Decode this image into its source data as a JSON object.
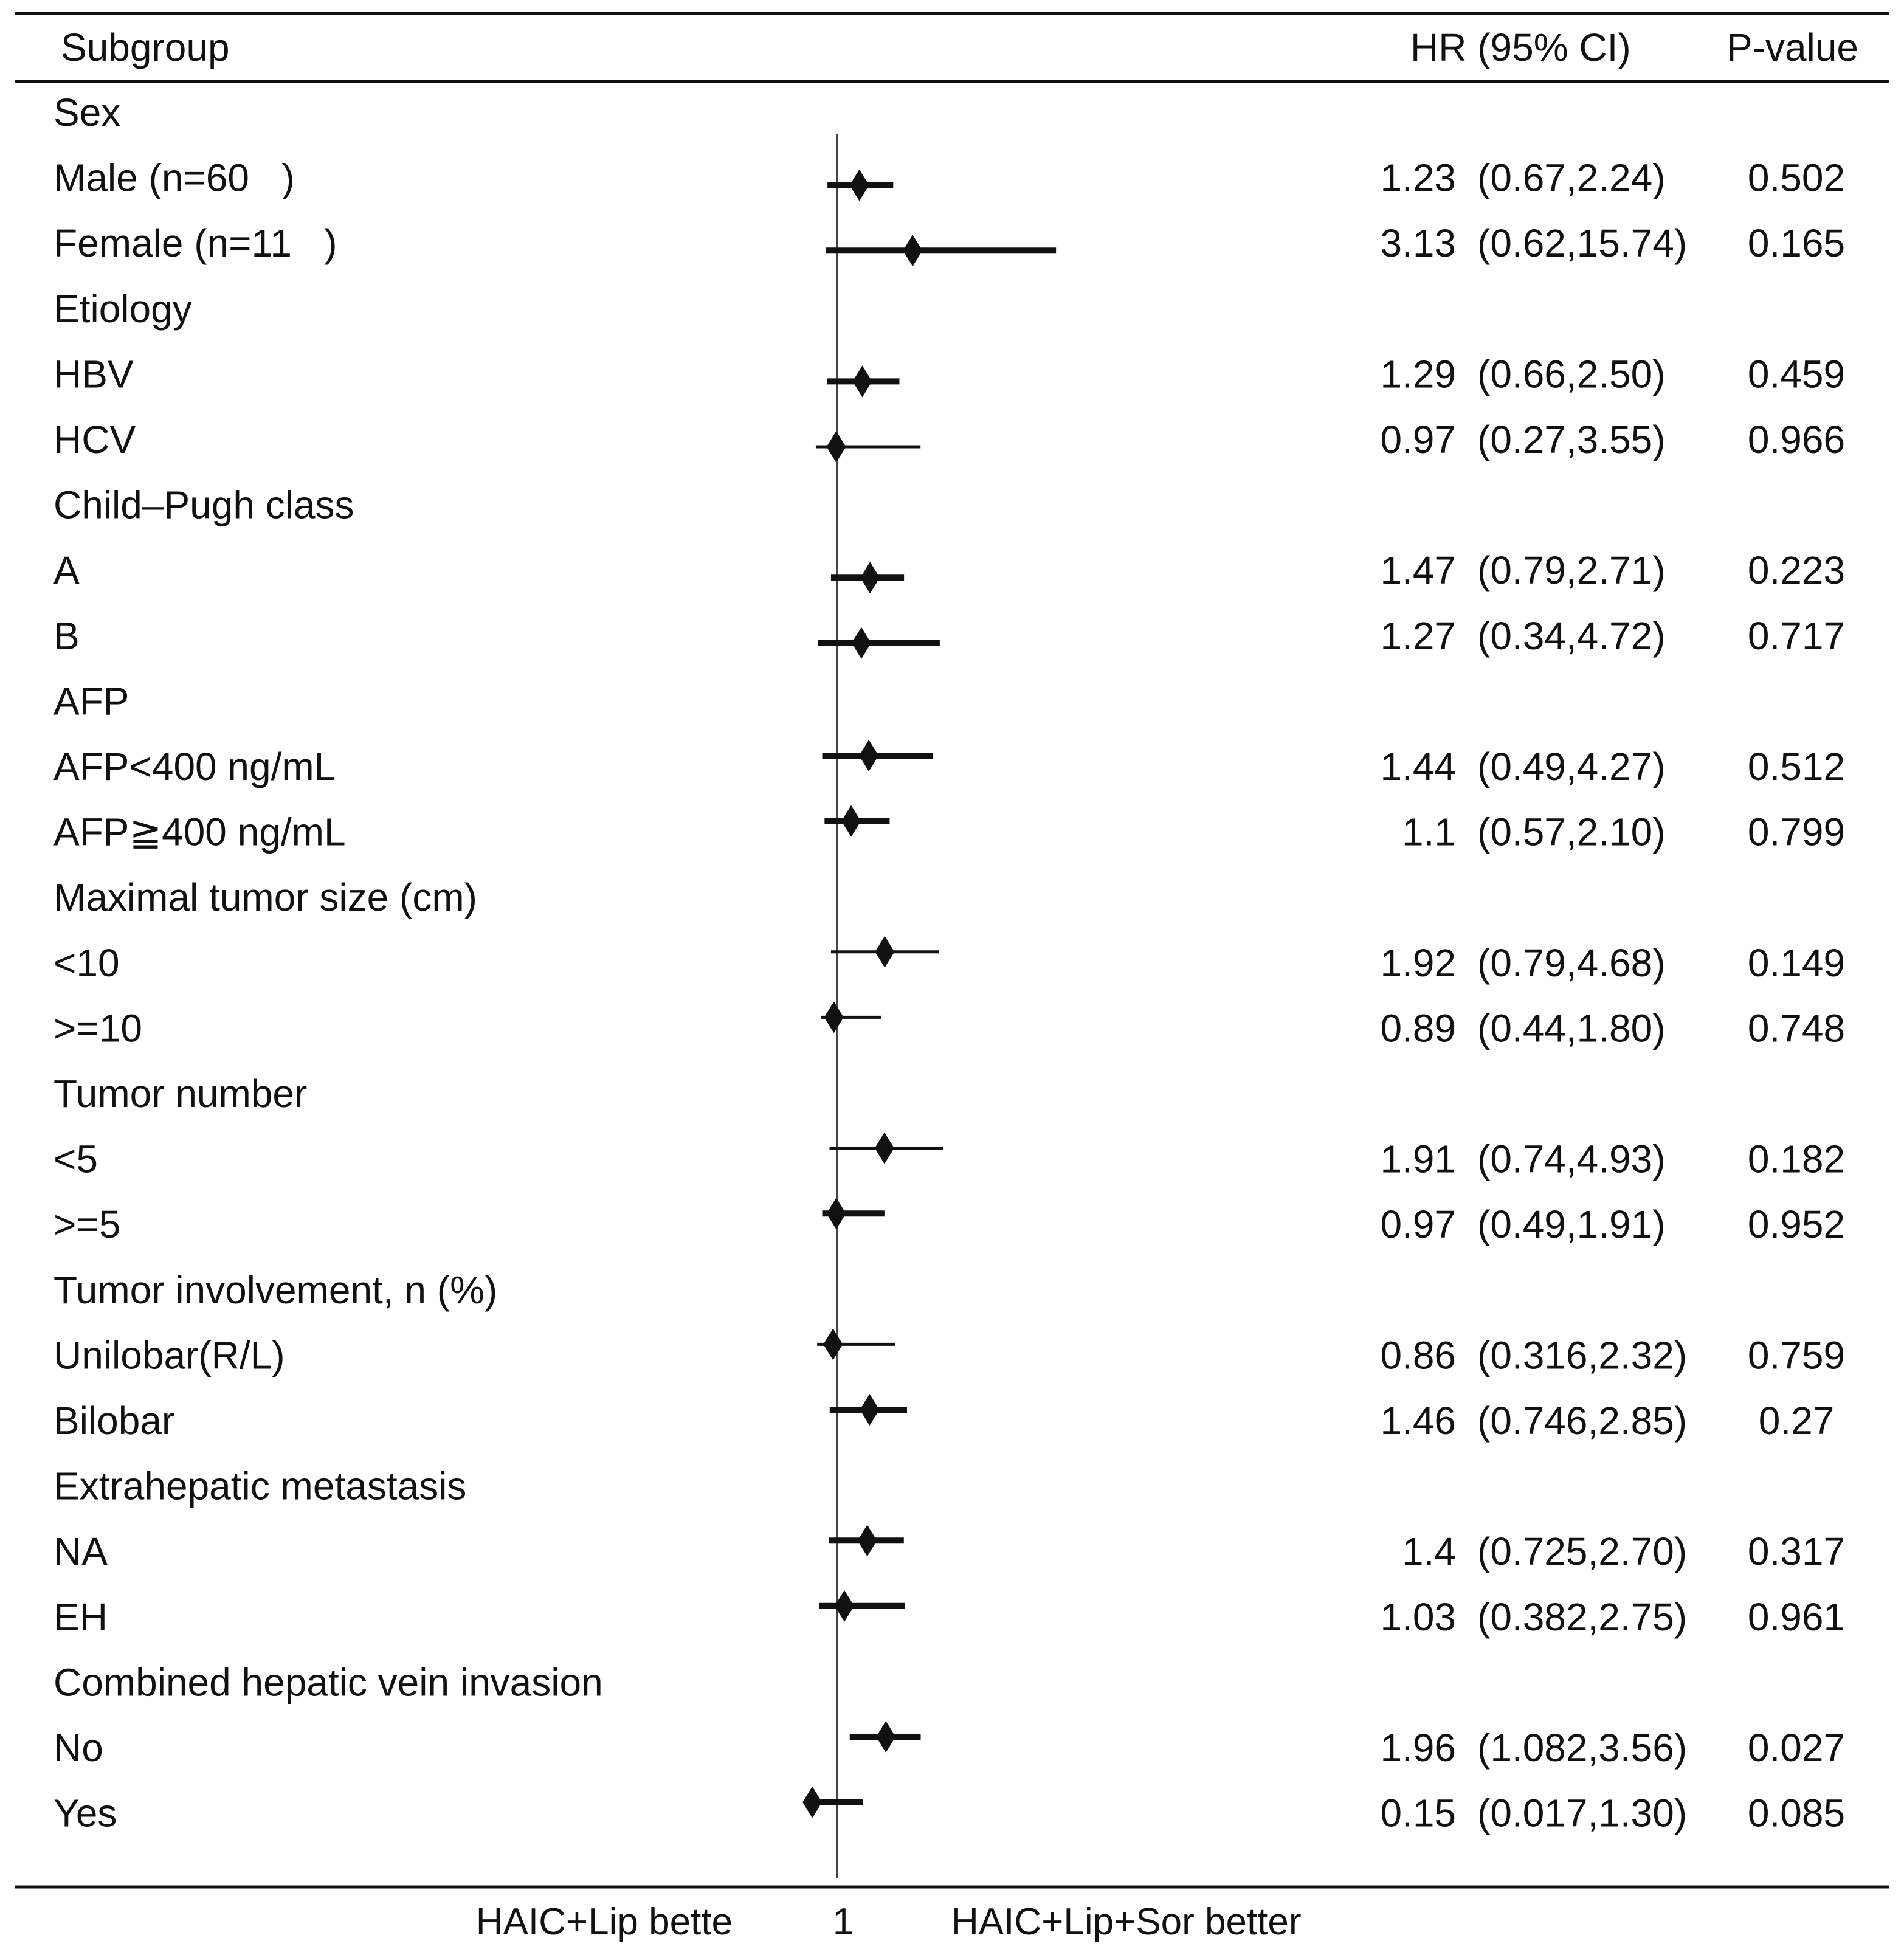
{
  "chart_data": {
    "type": "forest",
    "headers": {
      "subgroup": "Subgroup",
      "hr": "HR (95% CI)",
      "p": "P-value"
    },
    "reference_value": 1,
    "axis": {
      "reference_label": "1",
      "left_label": "HAIC+Lip bette",
      "right_label": "HAIC+Lip+Sor better"
    },
    "rows": [
      {
        "label": "Sex",
        "header": true
      },
      {
        "label": "Male (n=60   )",
        "hr": 1.23,
        "lo": 0.67,
        "hi": 2.24,
        "hr_text": "1.23",
        "ci_text": "(0.67,2.24)",
        "p": "0.502",
        "thick": true
      },
      {
        "label": "Female (n=11   )",
        "hr": 3.13,
        "lo": 0.62,
        "hi": 15.74,
        "hr_text": "3.13",
        "ci_text": "(0.62,15.74)",
        "p": "0.165",
        "thick": true
      },
      {
        "label": "Etiology",
        "header": true
      },
      {
        "label": "HBV",
        "hr": 1.29,
        "lo": 0.66,
        "hi": 2.5,
        "hr_text": "1.29",
        "ci_text": "(0.66,2.50)",
        "p": "0.459",
        "thick": true
      },
      {
        "label": "HCV",
        "hr": 0.97,
        "lo": 0.27,
        "hi": 3.55,
        "hr_text": "0.97",
        "ci_text": "(0.27,3.55)",
        "p": "0.966",
        "thick": false
      },
      {
        "label": "Child–Pugh class",
        "header": true
      },
      {
        "label": "A",
        "hr": 1.47,
        "lo": 0.79,
        "hi": 2.71,
        "hr_text": "1.47",
        "ci_text": "(0.79,2.71)",
        "p": "0.223",
        "thick": true
      },
      {
        "label": "B",
        "hr": 1.27,
        "lo": 0.34,
        "hi": 4.72,
        "hr_text": "1.27",
        "ci_text": "(0.34,4.72)",
        "p": "0.717",
        "thick": true
      },
      {
        "label": "AFP",
        "header": true
      },
      {
        "label": "AFP<400 ng/mL",
        "hr": 1.44,
        "lo": 0.49,
        "hi": 4.27,
        "hr_text": "1.44",
        "ci_text": "(0.49,4.27)",
        "p": "0.512",
        "thick": true
      },
      {
        "label": "AFP≧400 ng/mL",
        "hr": 1.1,
        "lo": 0.57,
        "hi": 2.1,
        "hr_text": "1.1",
        "ci_text": "(0.57,2.10)",
        "p": "0.799",
        "thick": true
      },
      {
        "label": "Maximal tumor size (cm)",
        "header": true
      },
      {
        "label": "<10",
        "hr": 1.92,
        "lo": 0.79,
        "hi": 4.68,
        "hr_text": "1.92",
        "ci_text": "(0.79,4.68)",
        "p": "0.149",
        "thick": false
      },
      {
        "label": ">=10",
        "hr": 0.89,
        "lo": 0.44,
        "hi": 1.8,
        "hr_text": "0.89",
        "ci_text": "(0.44,1.80)",
        "p": "0.748",
        "thick": false
      },
      {
        "label": "Tumor number",
        "header": true
      },
      {
        "label": "<5",
        "hr": 1.91,
        "lo": 0.74,
        "hi": 4.93,
        "hr_text": "1.91",
        "ci_text": "(0.74,4.93)",
        "p": "0.182",
        "thick": false
      },
      {
        "label": ">=5",
        "hr": 0.97,
        "lo": 0.49,
        "hi": 1.91,
        "hr_text": "0.97",
        "ci_text": "(0.49,1.91)",
        "p": "0.952",
        "thick": true
      },
      {
        "label": "Tumor involvement, n (%)",
        "header": true
      },
      {
        "label": "Unilobar(R/L)",
        "hr": 0.86,
        "lo": 0.316,
        "hi": 2.32,
        "hr_text": "0.86",
        "ci_text": "(0.316,2.32)",
        "p": "0.759",
        "thick": false
      },
      {
        "label": "Bilobar",
        "hr": 1.46,
        "lo": 0.746,
        "hi": 2.85,
        "hr_text": "1.46",
        "ci_text": "(0.746,2.85)",
        "p": "0.27",
        "thick": true
      },
      {
        "label": "Extrahepatic metastasis",
        "header": true
      },
      {
        "label": "NA",
        "hr": 1.4,
        "lo": 0.725,
        "hi": 2.7,
        "hr_text": "1.4",
        "ci_text": "(0.725,2.70)",
        "p": "0.317",
        "thick": true
      },
      {
        "label": "EH",
        "hr": 1.03,
        "lo": 0.382,
        "hi": 2.75,
        "hr_text": "1.03",
        "ci_text": "(0.382,2.75)",
        "p": "0.961",
        "thick": true
      },
      {
        "label": "Combined hepatic vein invasion",
        "header": true
      },
      {
        "label": "No",
        "hr": 1.96,
        "lo": 1.082,
        "hi": 3.56,
        "hr_text": "1.96",
        "ci_text": "(1.082,3.56)",
        "p": "0.027",
        "thick": true
      },
      {
        "label": "Yes",
        "hr": 0.15,
        "lo": 0.017,
        "hi": 1.3,
        "hr_text": "0.15",
        "ci_text": "(0.017,1.30)",
        "p": "0.085",
        "thick": true
      }
    ]
  }
}
